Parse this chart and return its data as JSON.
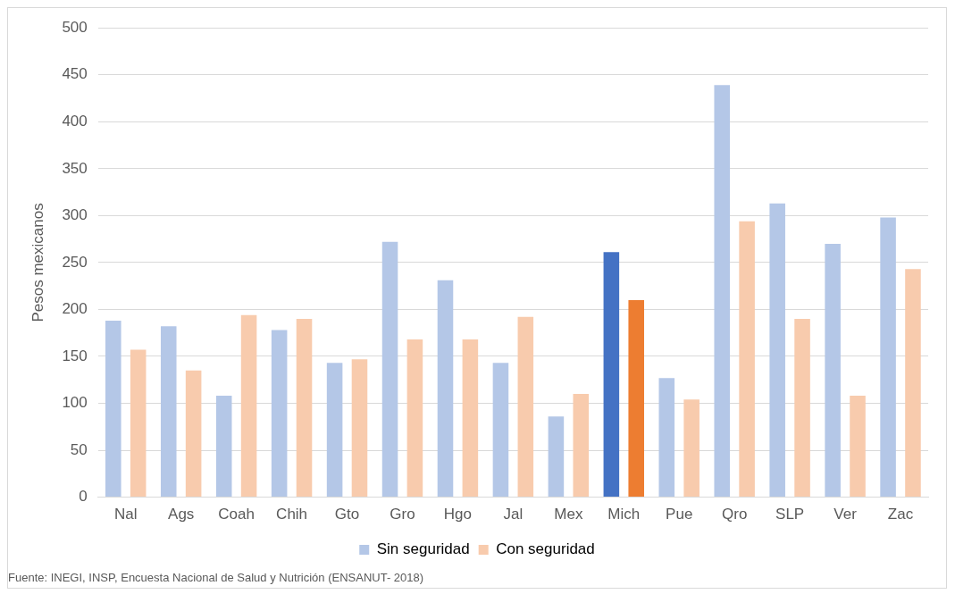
{
  "chart_data": {
    "type": "bar",
    "ylabel": "Pesos mexicanos",
    "categories": [
      "Nal",
      "Ags",
      "Coah",
      "Chih",
      "Gto",
      "Gro",
      "Hgo",
      "Jal",
      "Mex",
      "Mich",
      "Pue",
      "Qro",
      "SLP",
      "Ver",
      "Zac"
    ],
    "series": [
      {
        "name": "Sin seguridad",
        "color": "#b4c7e7",
        "colors": [
          "#b4c7e7",
          "#b4c7e7",
          "#b4c7e7",
          "#b4c7e7",
          "#b4c7e7",
          "#b4c7e7",
          "#b4c7e7",
          "#b4c7e7",
          "#b4c7e7",
          "#4472c4",
          "#b4c7e7",
          "#b4c7e7",
          "#b4c7e7",
          "#b4c7e7",
          "#b4c7e7"
        ],
        "values": [
          188,
          182,
          108,
          178,
          143,
          272,
          231,
          143,
          86,
          261,
          127,
          439,
          313,
          270,
          298
        ]
      },
      {
        "name": "Con seguridad",
        "color": "#f8cbad",
        "colors": [
          "#f8cbad",
          "#f8cbad",
          "#f8cbad",
          "#f8cbad",
          "#f8cbad",
          "#f8cbad",
          "#f8cbad",
          "#f8cbad",
          "#f8cbad",
          "#ed7d31",
          "#f8cbad",
          "#f8cbad",
          "#f8cbad",
          "#f8cbad",
          "#f8cbad"
        ],
        "values": [
          157,
          135,
          194,
          190,
          147,
          168,
          168,
          192,
          110,
          210,
          104,
          294,
          190,
          108,
          243
        ]
      }
    ],
    "ylim": [
      0,
      500
    ],
    "yticks": [
      0,
      50,
      100,
      150,
      200,
      250,
      300,
      350,
      400,
      450,
      500
    ],
    "grid": "y",
    "legend": "bottom",
    "annotations": [
      "Fuente: INEGI, INSP, Encuesta Nacional de Salud y Nutrición (ENSANUT- 2018)"
    ]
  }
}
